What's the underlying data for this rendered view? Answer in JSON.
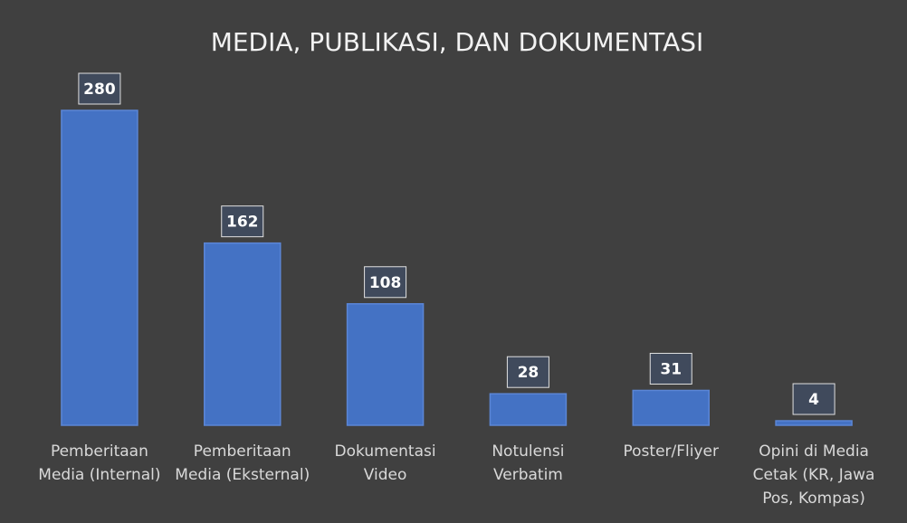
{
  "chart_data": {
    "type": "bar",
    "title": "MEDIA, PUBLIKASI, DAN DOKUMENTASI",
    "categories": [
      "Pemberitaan Media (Internal)",
      "Pemberitaan Media (Eksternal)",
      "Dokumentasi Video",
      "Notulensi Verbatim",
      "Poster/Fliyer",
      "Opini di Media Cetak (KR, Jawa Pos, Kompas)"
    ],
    "values": [
      280,
      162,
      108,
      28,
      31,
      4
    ],
    "color": "#4472c4"
  }
}
